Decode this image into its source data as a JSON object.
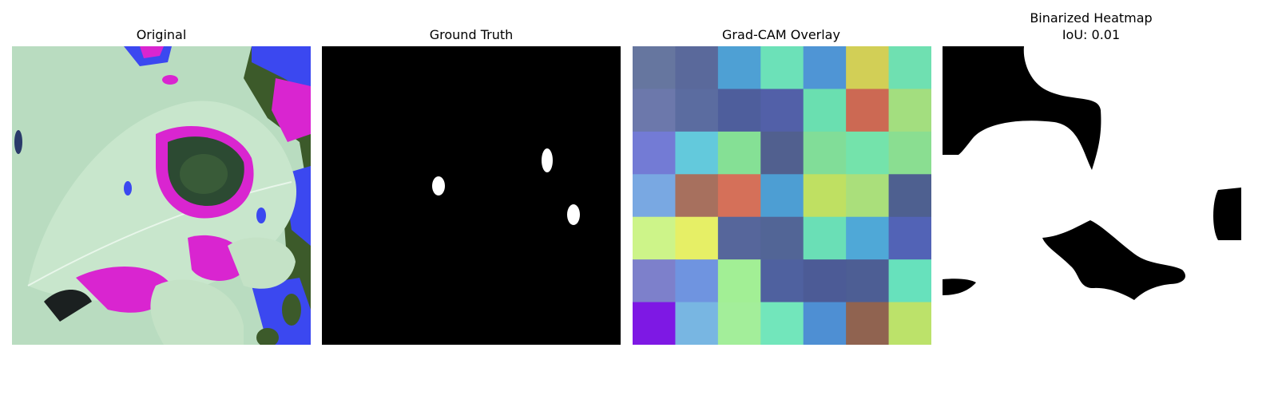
{
  "panels": [
    {
      "id": "original",
      "title": "Original"
    },
    {
      "id": "ground_truth",
      "title": "Ground Truth"
    },
    {
      "id": "gradcam",
      "title": "Grad-CAM Overlay"
    },
    {
      "id": "binarized",
      "title": "Binarized Heatmap",
      "subtitle": "IoU: 0.01"
    }
  ],
  "gradcam_grid": [
    [
      "#66769f",
      "#5a699b",
      "#4ea0d4",
      "#6ce1b8",
      "#4f95d5",
      "#d2cf56",
      "#6fe0b1"
    ],
    [
      "#6c78ab",
      "#5b6ca0",
      "#4e5e9c",
      "#5260a8",
      "#6adfb0",
      "#cc6953",
      "#a3de7f"
    ],
    [
      "#737bd5",
      "#63c9dc",
      "#85e095",
      "#51608f",
      "#81dd98",
      "#74e3ab",
      "#8ade91"
    ],
    [
      "#79a8e2",
      "#a7705e",
      "#d57059",
      "#4d9ed3",
      "#bfe062",
      "#aadf7b",
      "#4e6090"
    ],
    [
      "#cdf489",
      "#e6ef66",
      "#56669b",
      "#526596",
      "#6adfb6",
      "#4fa8d7",
      "#5263b6"
    ],
    [
      "#7d80cb",
      "#6f94e0",
      "#a2ef95",
      "#4f619f",
      "#4c5b96",
      "#4d5e94",
      "#67e1bc"
    ],
    [
      "#7e18e4",
      "#78b6e2",
      "#a3ee9a",
      "#72e6bb",
      "#4e8fd3",
      "#906350",
      "#bce26a"
    ]
  ]
}
